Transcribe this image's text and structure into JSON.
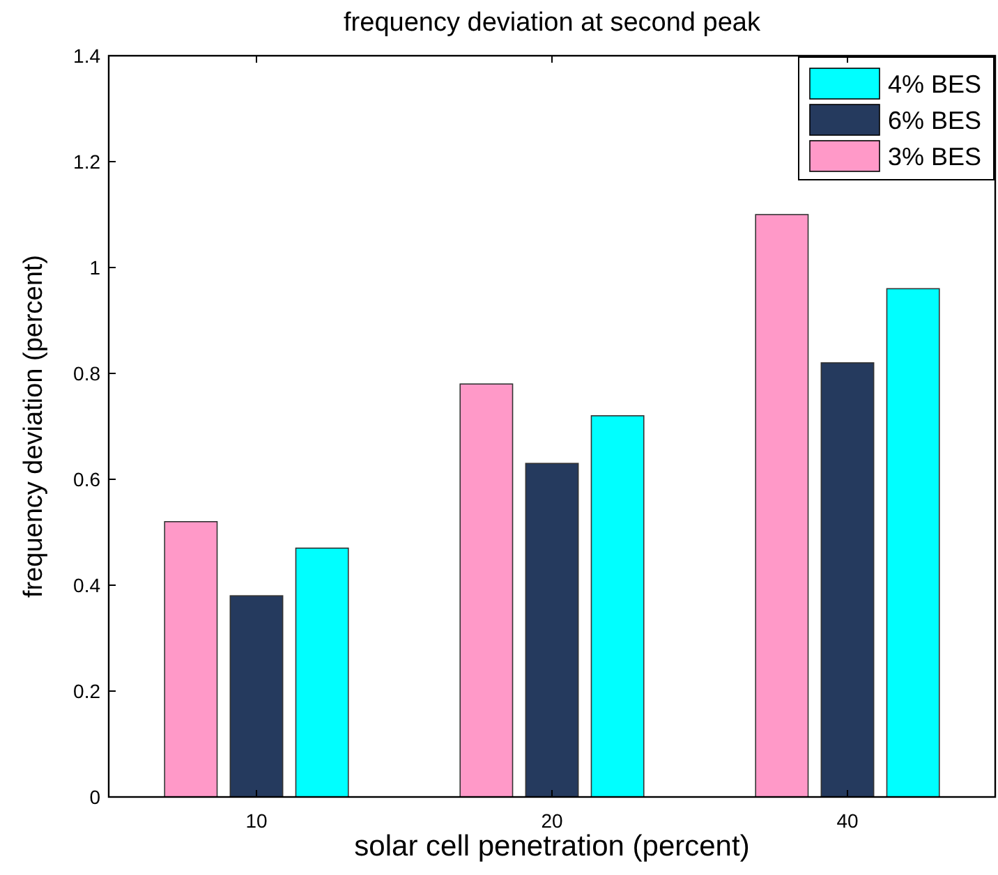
{
  "chart_data": {
    "type": "bar",
    "title": "frequency deviation at second peak",
    "xlabel": "solar cell penetration (percent)",
    "ylabel": "frequency deviation (percent)",
    "categories": [
      "10",
      "20",
      "40"
    ],
    "series": [
      {
        "name": "3% BES",
        "color": "#ff99c8",
        "values": [
          0.52,
          0.78,
          1.1
        ]
      },
      {
        "name": "6% BES",
        "color": "#253a5e",
        "values": [
          0.38,
          0.63,
          0.82
        ]
      },
      {
        "name": "4% BES",
        "color": "#00ffff",
        "values": [
          0.47,
          0.72,
          0.96
        ]
      }
    ],
    "ylim": [
      0,
      1.4
    ],
    "yticks": [
      0,
      0.2,
      0.4,
      0.6,
      0.8,
      1,
      1.2,
      1.4
    ],
    "grid": false,
    "legend": "top right"
  }
}
